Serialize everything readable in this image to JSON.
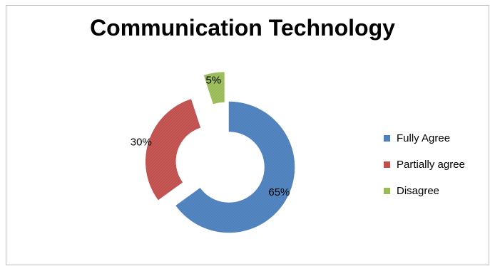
{
  "chart_data": {
    "type": "pie",
    "variant": "doughnut-exploded",
    "title": "Communication Technology",
    "categories": [
      "Fully Agree",
      "Partially agree",
      "Disagree"
    ],
    "values": [
      65,
      30,
      5
    ],
    "labels": [
      "65%",
      "30%",
      "5%"
    ],
    "unit": "%",
    "colors": [
      "#4f81bd",
      "#c0504d",
      "#9bbb59"
    ],
    "legend": "right",
    "grid": false
  }
}
